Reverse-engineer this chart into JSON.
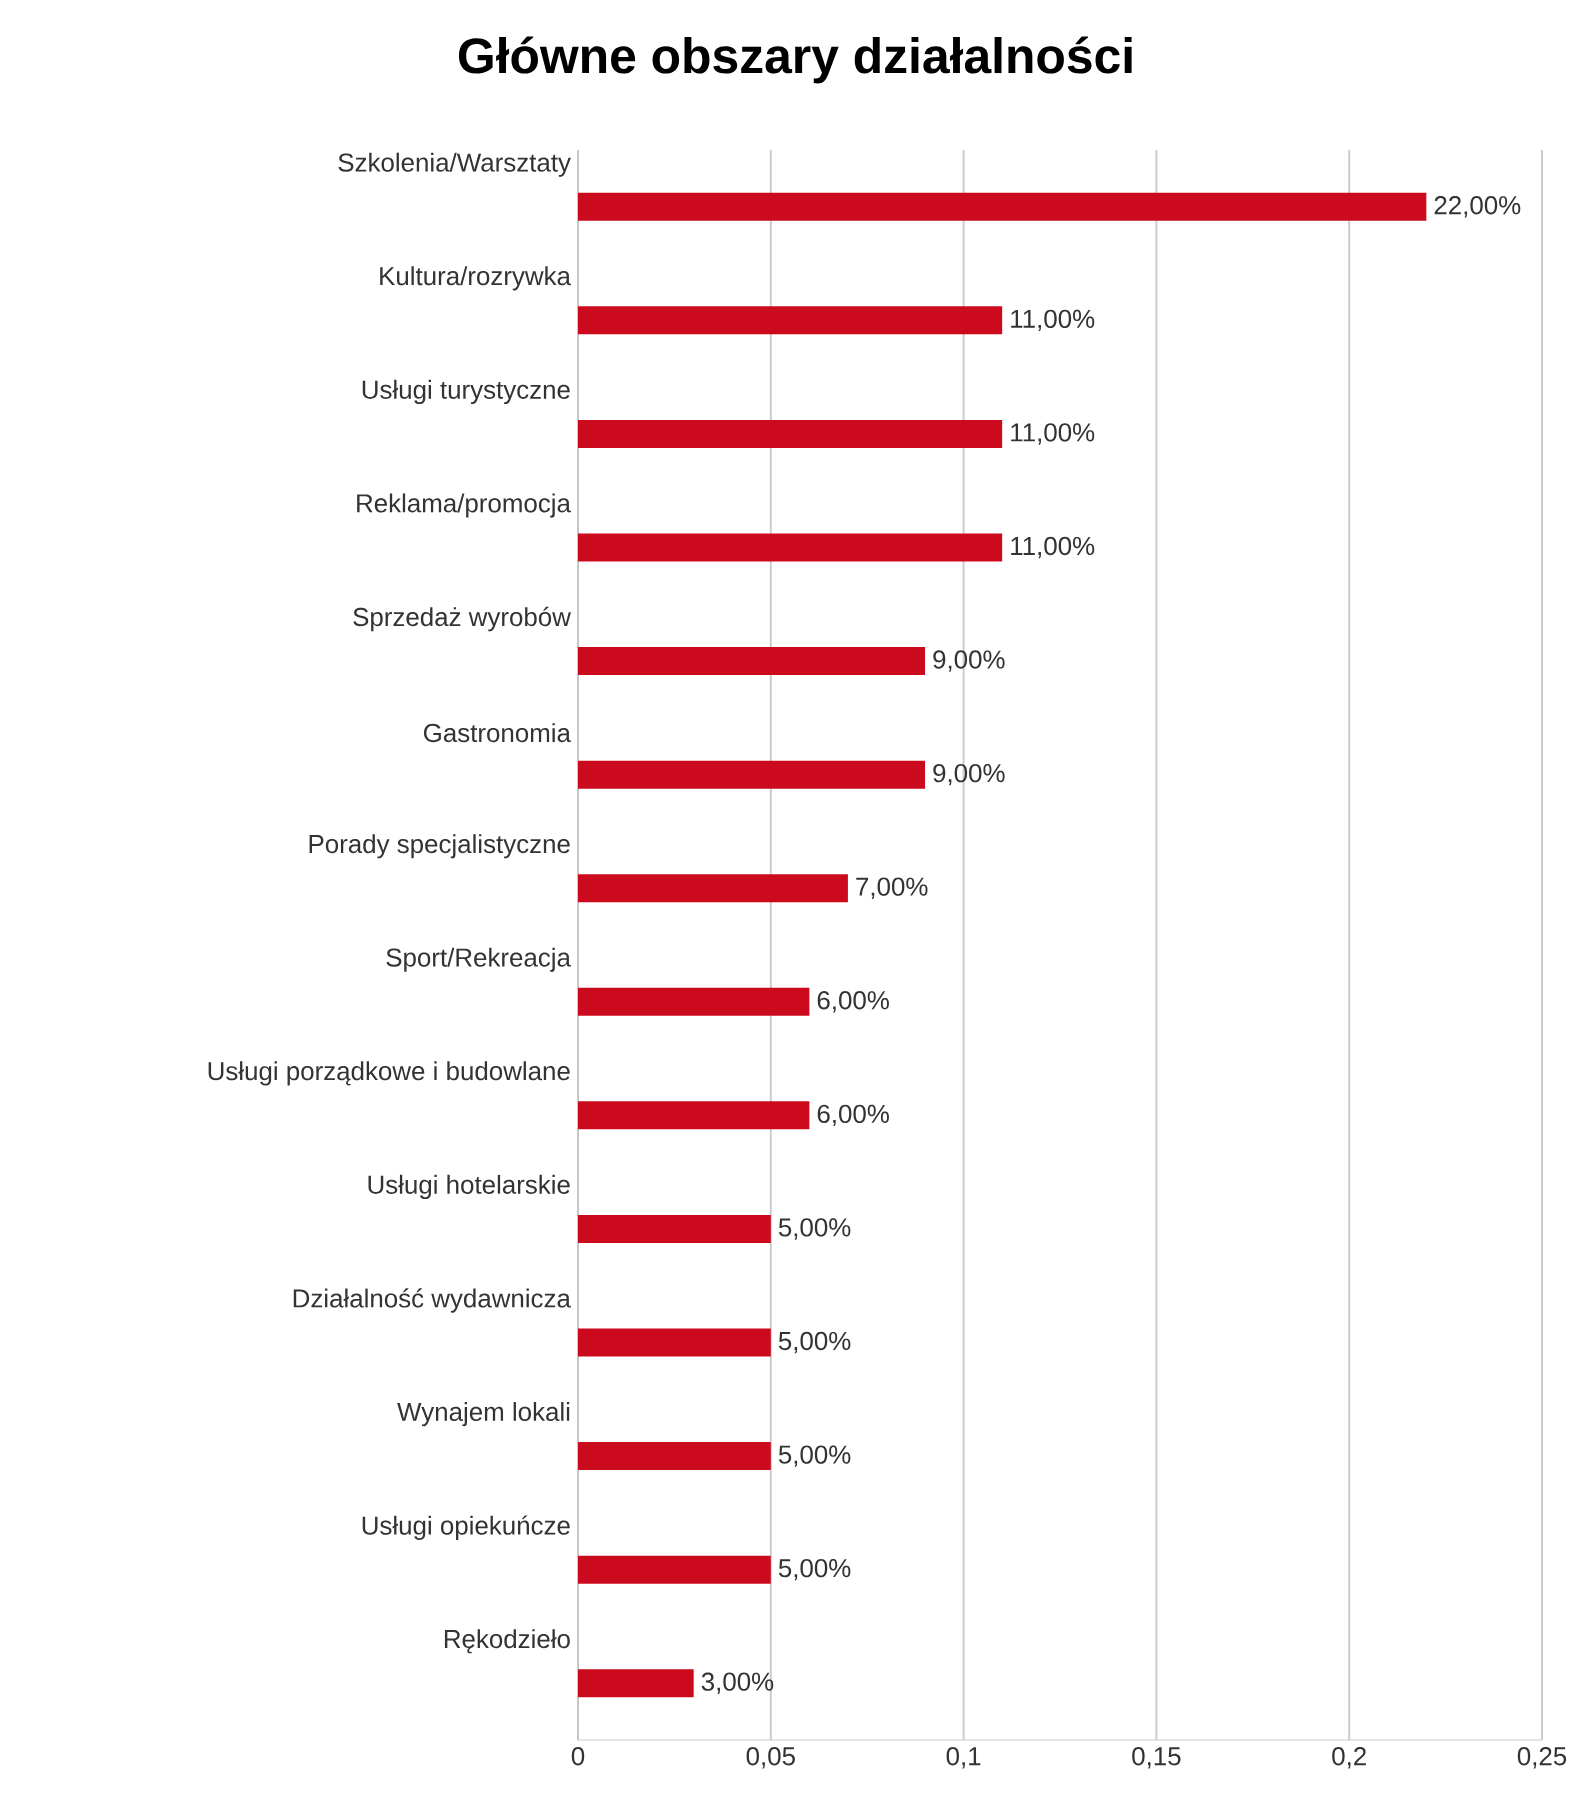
{
  "chart_data": {
    "type": "bar",
    "orientation": "horizontal",
    "title": "Główne obszary działalności",
    "categories": [
      "Szkolenia/Warsztaty",
      "Kultura/rozrywka",
      "Usługi turystyczne",
      "Reklama/promocja",
      "Sprzedaż wyrobów",
      "Gastronomia",
      "Porady specjalistyczne",
      "Sport/Rekreacja",
      "Usługi porządkowe i budowlane",
      "Usługi hotelarskie",
      "Działalność wydawnicza",
      "Wynajem lokali",
      "Usługi opiekuńcze",
      "Rękodzieło"
    ],
    "values": [
      0.22,
      0.11,
      0.11,
      0.11,
      0.09,
      0.09,
      0.07,
      0.06,
      0.06,
      0.05,
      0.05,
      0.05,
      0.05,
      0.03
    ],
    "value_labels": [
      "22,00%",
      "11,00%",
      "11,00%",
      "11,00%",
      "9,00%",
      "9,00%",
      "7,00%",
      "6,00%",
      "6,00%",
      "5,00%",
      "5,00%",
      "5,00%",
      "5,00%",
      "3,00%"
    ],
    "color": "#cc0a1e",
    "xlim": [
      0,
      0.25
    ],
    "xticks": [
      0,
      {
        "value": 0.05,
        "label": "0,05"
      },
      {
        "value": 0.1,
        "label": "0,1"
      },
      {
        "value": 0.15,
        "label": "0,15"
      },
      {
        "value": 0.2,
        "label": "0,2"
      },
      {
        "value": 0.25,
        "label": "0,25"
      }
    ],
    "grid": "x"
  }
}
